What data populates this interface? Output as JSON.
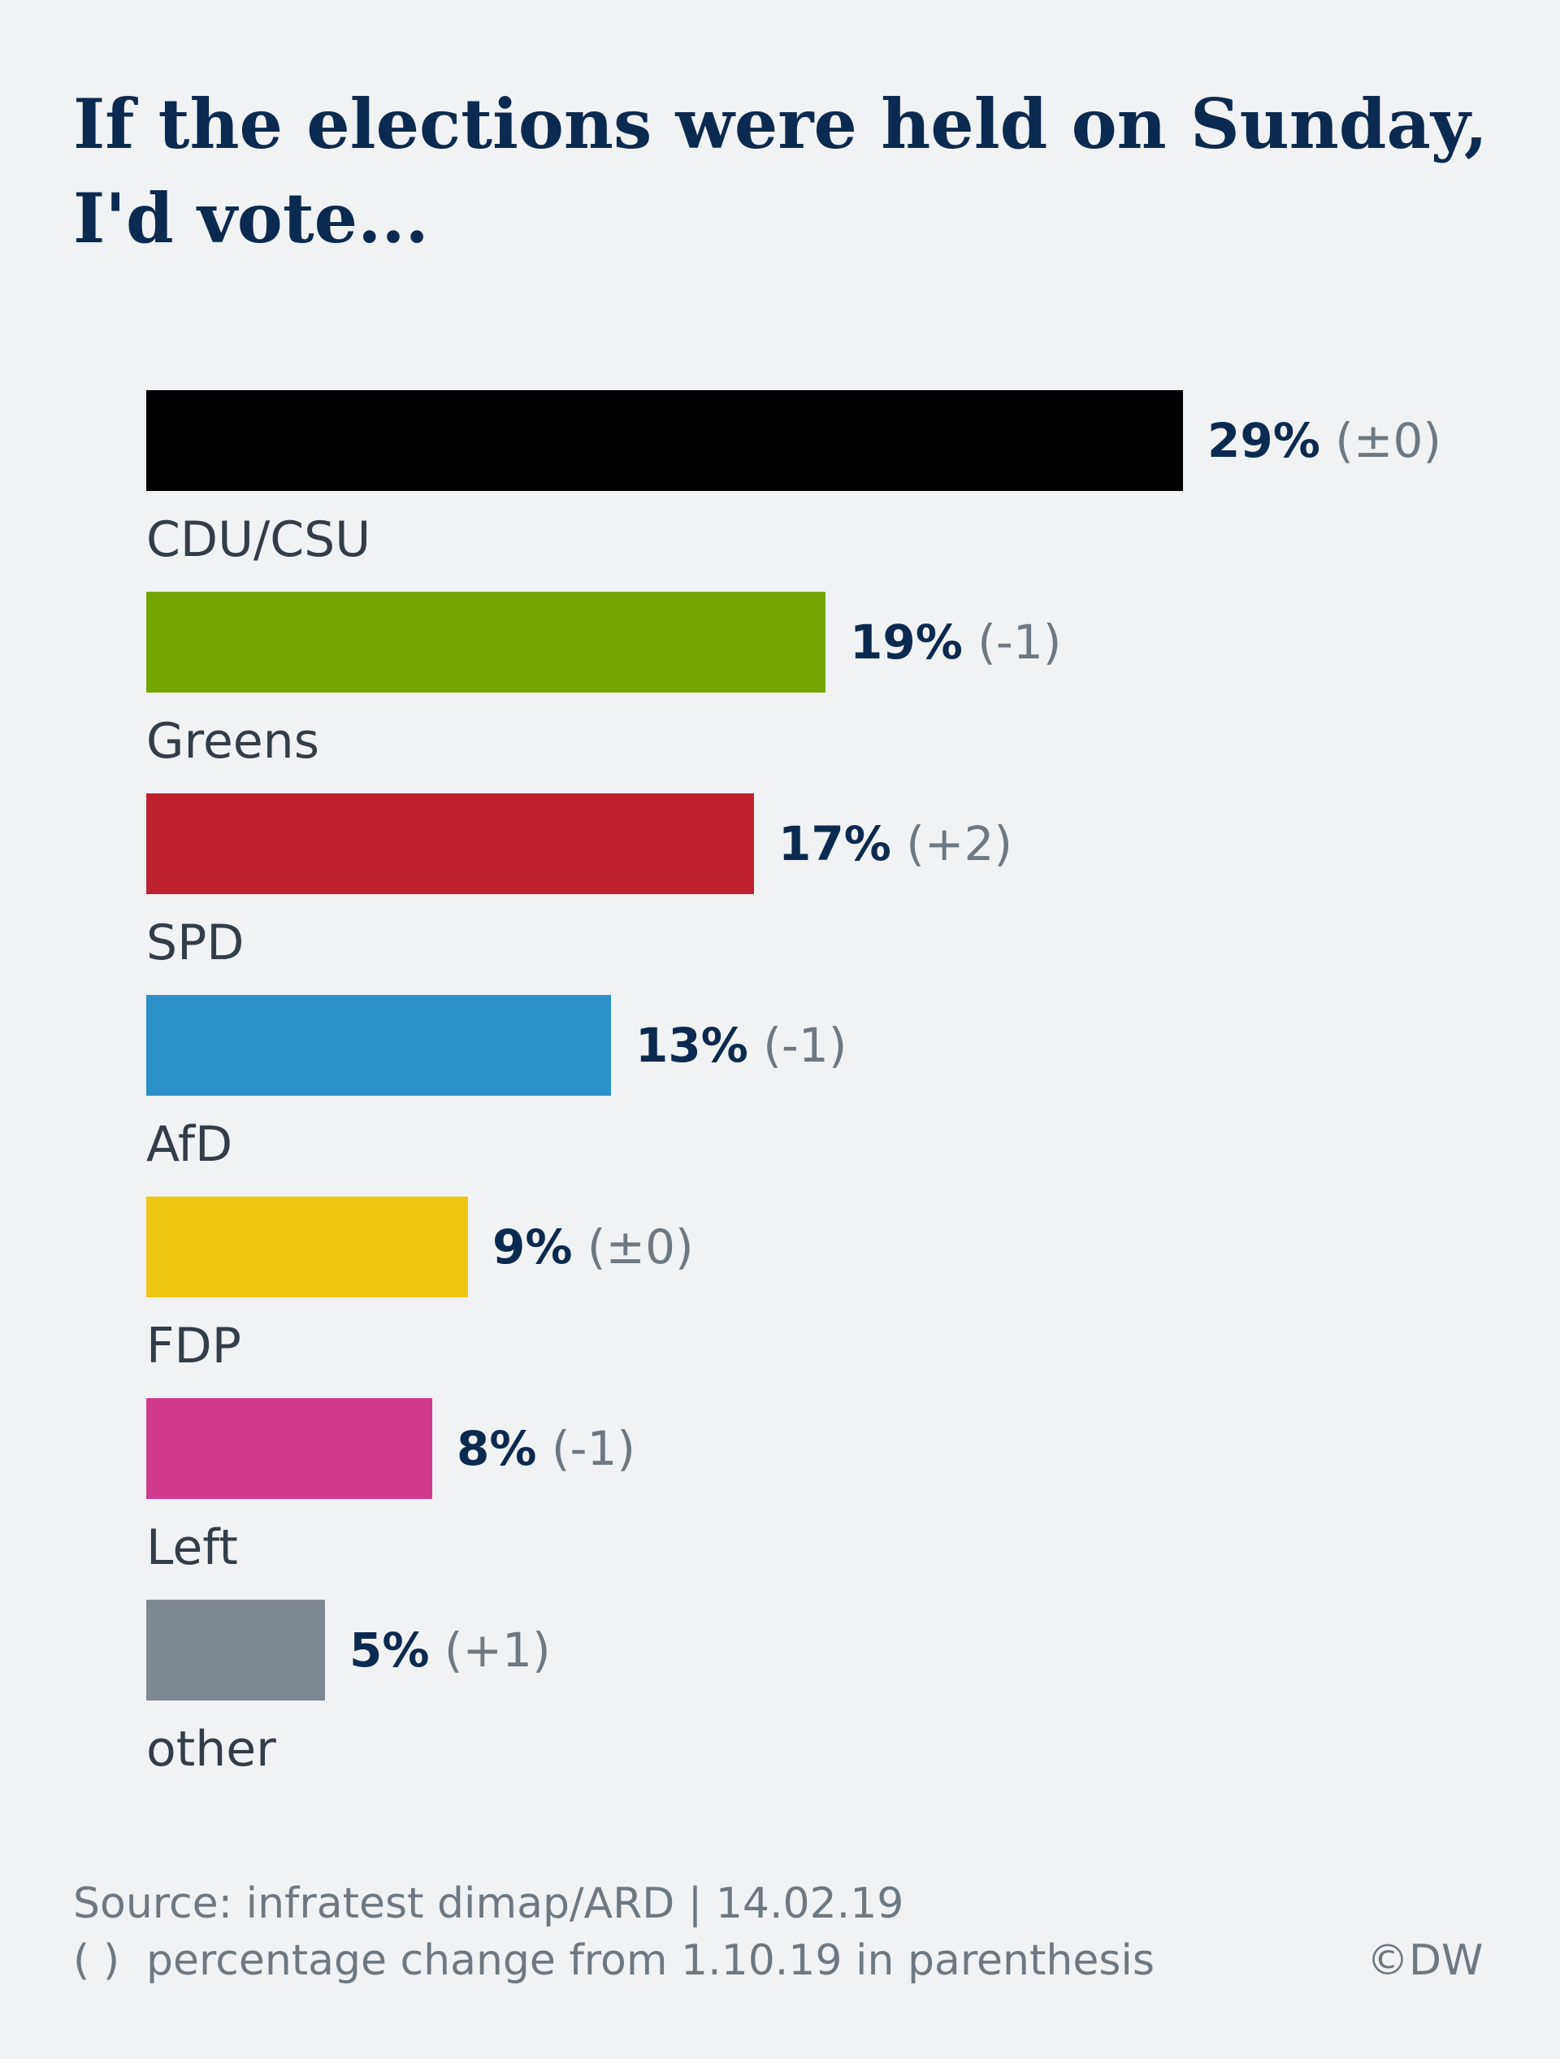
{
  "title": "If the elections were held on Sunday, I'd vote...",
  "chart_data": {
    "type": "bar",
    "orientation": "horizontal",
    "title": "If the elections were held on Sunday, I'd vote...",
    "categories": [
      "CDU/CSU",
      "Greens",
      "SPD",
      "AfD",
      "FDP",
      "Left",
      "other"
    ],
    "values": [
      29,
      19,
      17,
      13,
      9,
      8,
      5
    ],
    "value_labels": [
      "29%",
      "19%",
      "17%",
      "13%",
      "9%",
      "8%",
      "5%"
    ],
    "change_labels": [
      "(±0)",
      "(-1)",
      "(+2)",
      "(-1)",
      "(±0)",
      "(-1)",
      "(+1)"
    ],
    "colors": [
      "#000000",
      "#72a500",
      "#be222e",
      "#2d91c9",
      "#efc612",
      "#d0398c",
      "#7f8891"
    ],
    "value_label_color": "#0b2a4f",
    "change_label_color": "#6e7880",
    "xlim": [
      0,
      29
    ],
    "grid": false,
    "legend": "none"
  },
  "footer": {
    "source": "Source: infratest dimap/ARD | 14.02.19",
    "note_symbol": "( )",
    "note_text": "percentage change from 1.10.19 in parenthesis",
    "credit": "©DW"
  }
}
